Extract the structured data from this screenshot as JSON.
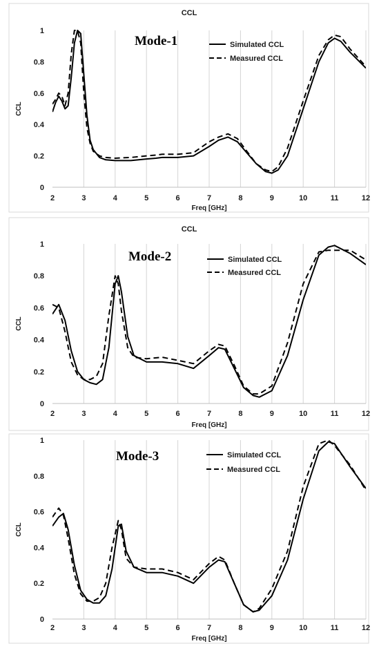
{
  "chart_data": [
    {
      "type": "line",
      "title": "CCL",
      "annotation": "Mode-1",
      "xlabel": "Freq [GHz]",
      "ylabel": "CCL",
      "xlim": [
        2,
        12
      ],
      "ylim": [
        0,
        1
      ],
      "xticks": [
        "2",
        "3",
        "4",
        "5",
        "6",
        "7",
        "8",
        "9",
        "10",
        "11",
        "12"
      ],
      "yticks": [
        "0",
        "0.2",
        "0.4",
        "0.6",
        "0.8",
        "1"
      ],
      "grid": "vertical",
      "legend": "top-right",
      "series": [
        {
          "name": "Simulated CCL",
          "style": "solid",
          "x": [
            2,
            2.1,
            2.2,
            2.3,
            2.4,
            2.5,
            2.6,
            2.7,
            2.8,
            2.9,
            3.0,
            3.1,
            3.2,
            3.3,
            3.5,
            3.7,
            4,
            4.5,
            5,
            5.3,
            5.5,
            6,
            6.5,
            7,
            7.3,
            7.6,
            7.9,
            8.2,
            8.5,
            8.8,
            9,
            9.2,
            9.5,
            10,
            10.5,
            10.8,
            11,
            11.2,
            11.5,
            12
          ],
          "y": [
            0.48,
            0.54,
            0.58,
            0.55,
            0.5,
            0.52,
            0.7,
            0.92,
            1.0,
            0.98,
            0.72,
            0.46,
            0.3,
            0.24,
            0.19,
            0.175,
            0.17,
            0.17,
            0.18,
            0.185,
            0.19,
            0.19,
            0.2,
            0.26,
            0.3,
            0.32,
            0.29,
            0.22,
            0.15,
            0.1,
            0.09,
            0.11,
            0.2,
            0.5,
            0.8,
            0.92,
            0.95,
            0.93,
            0.86,
            0.76
          ]
        },
        {
          "name": "Measured CCL",
          "style": "dashed",
          "x": [
            2,
            2.1,
            2.2,
            2.3,
            2.4,
            2.5,
            2.6,
            2.7,
            2.8,
            2.9,
            3.0,
            3.1,
            3.2,
            3.3,
            3.5,
            3.7,
            4,
            4.5,
            5,
            5.3,
            5.5,
            6,
            6.5,
            7,
            7.3,
            7.6,
            7.9,
            8.2,
            8.5,
            8.8,
            9,
            9.2,
            9.5,
            10,
            10.5,
            10.8,
            11,
            11.2,
            11.5,
            12
          ],
          "y": [
            0.53,
            0.56,
            0.6,
            0.58,
            0.52,
            0.6,
            0.85,
            1.0,
            1.0,
            0.92,
            0.6,
            0.38,
            0.28,
            0.23,
            0.2,
            0.19,
            0.185,
            0.19,
            0.2,
            0.205,
            0.21,
            0.21,
            0.22,
            0.29,
            0.32,
            0.34,
            0.31,
            0.23,
            0.15,
            0.11,
            0.1,
            0.13,
            0.25,
            0.55,
            0.84,
            0.94,
            0.97,
            0.96,
            0.88,
            0.77
          ]
        }
      ]
    },
    {
      "type": "line",
      "title": "CCL",
      "annotation": "Mode-2",
      "xlabel": "Freq [GHz]",
      "ylabel": "CCL",
      "xlim": [
        2,
        12
      ],
      "ylim": [
        0,
        1
      ],
      "xticks": [
        "2",
        "3",
        "4",
        "5",
        "6",
        "7",
        "8",
        "9",
        "10",
        "11",
        "12"
      ],
      "yticks": [
        "0",
        "0.2",
        "0.4",
        "0.6",
        "0.8",
        "1"
      ],
      "grid": "vertical",
      "legend": "top-right",
      "series": [
        {
          "name": "Simulated CCL",
          "style": "solid",
          "x": [
            2,
            2.2,
            2.4,
            2.6,
            2.8,
            3.0,
            3.2,
            3.4,
            3.6,
            3.8,
            4.0,
            4.1,
            4.2,
            4.4,
            4.6,
            5,
            5.5,
            6,
            6.5,
            7,
            7.3,
            7.5,
            7.8,
            8.1,
            8.4,
            8.6,
            9,
            9.5,
            10,
            10.5,
            10.8,
            11,
            11.5,
            12
          ],
          "y": [
            0.56,
            0.62,
            0.52,
            0.33,
            0.2,
            0.15,
            0.13,
            0.12,
            0.15,
            0.35,
            0.75,
            0.8,
            0.7,
            0.42,
            0.3,
            0.26,
            0.26,
            0.25,
            0.22,
            0.3,
            0.35,
            0.34,
            0.22,
            0.1,
            0.05,
            0.04,
            0.08,
            0.3,
            0.65,
            0.93,
            0.98,
            0.99,
            0.94,
            0.87
          ]
        },
        {
          "name": "Measured CCL",
          "style": "dashed",
          "x": [
            2,
            2.2,
            2.4,
            2.6,
            2.8,
            3.0,
            3.2,
            3.4,
            3.6,
            3.8,
            4.0,
            4.1,
            4.2,
            4.4,
            4.6,
            5,
            5.5,
            6,
            6.5,
            7,
            7.3,
            7.5,
            7.8,
            8.1,
            8.4,
            8.6,
            9,
            9.5,
            10,
            10.5,
            10.8,
            11,
            11.5,
            12
          ],
          "y": [
            0.62,
            0.6,
            0.45,
            0.26,
            0.18,
            0.15,
            0.15,
            0.17,
            0.25,
            0.55,
            0.8,
            0.75,
            0.58,
            0.35,
            0.29,
            0.28,
            0.29,
            0.27,
            0.25,
            0.33,
            0.37,
            0.36,
            0.24,
            0.11,
            0.06,
            0.06,
            0.11,
            0.38,
            0.75,
            0.95,
            0.96,
            0.96,
            0.96,
            0.9
          ]
        }
      ]
    },
    {
      "type": "line",
      "title": "CCL",
      "annotation": "Mode-3",
      "xlabel": "Freq [GHz]",
      "ylabel": "CCL",
      "xlim": [
        2,
        12
      ],
      "ylim": [
        0,
        1
      ],
      "xticks": [
        "2",
        "3",
        "4",
        "5",
        "6",
        "7",
        "8",
        "9",
        "10",
        "11",
        "12"
      ],
      "yticks": [
        "0",
        "0.2",
        "0.4",
        "0.6",
        "0.8",
        "1"
      ],
      "grid": "vertical",
      "legend": "top-right",
      "series": [
        {
          "name": "Simulated CCL",
          "style": "solid",
          "x": [
            2,
            2.2,
            2.35,
            2.5,
            2.7,
            2.9,
            3.1,
            3.3,
            3.5,
            3.7,
            3.9,
            4.1,
            4.2,
            4.35,
            4.6,
            5,
            5.5,
            6,
            6.5,
            7,
            7.3,
            7.5,
            7.8,
            8.1,
            8.4,
            8.6,
            9,
            9.5,
            10,
            10.5,
            10.8,
            11,
            11.5,
            12
          ],
          "y": [
            0.52,
            0.57,
            0.59,
            0.5,
            0.3,
            0.16,
            0.11,
            0.09,
            0.09,
            0.13,
            0.28,
            0.52,
            0.53,
            0.38,
            0.29,
            0.26,
            0.26,
            0.24,
            0.2,
            0.29,
            0.33,
            0.32,
            0.2,
            0.08,
            0.04,
            0.05,
            0.13,
            0.33,
            0.67,
            0.94,
            0.99,
            0.98,
            0.85,
            0.73
          ]
        },
        {
          "name": "Measured CCL",
          "style": "dashed",
          "x": [
            2,
            2.2,
            2.35,
            2.5,
            2.7,
            2.9,
            3.1,
            3.3,
            3.5,
            3.7,
            3.9,
            4.1,
            4.2,
            4.35,
            4.6,
            5,
            5.5,
            6,
            6.5,
            7,
            7.3,
            7.5,
            7.8,
            8.1,
            8.4,
            8.6,
            9,
            9.5,
            10,
            10.5,
            10.8,
            11,
            11.5,
            12
          ],
          "y": [
            0.57,
            0.62,
            0.58,
            0.45,
            0.25,
            0.14,
            0.1,
            0.1,
            0.12,
            0.2,
            0.4,
            0.55,
            0.5,
            0.34,
            0.29,
            0.28,
            0.28,
            0.26,
            0.22,
            0.31,
            0.35,
            0.33,
            0.2,
            0.08,
            0.04,
            0.06,
            0.17,
            0.38,
            0.74,
            0.98,
            1.0,
            0.97,
            0.86,
            0.72
          ]
        }
      ]
    }
  ]
}
